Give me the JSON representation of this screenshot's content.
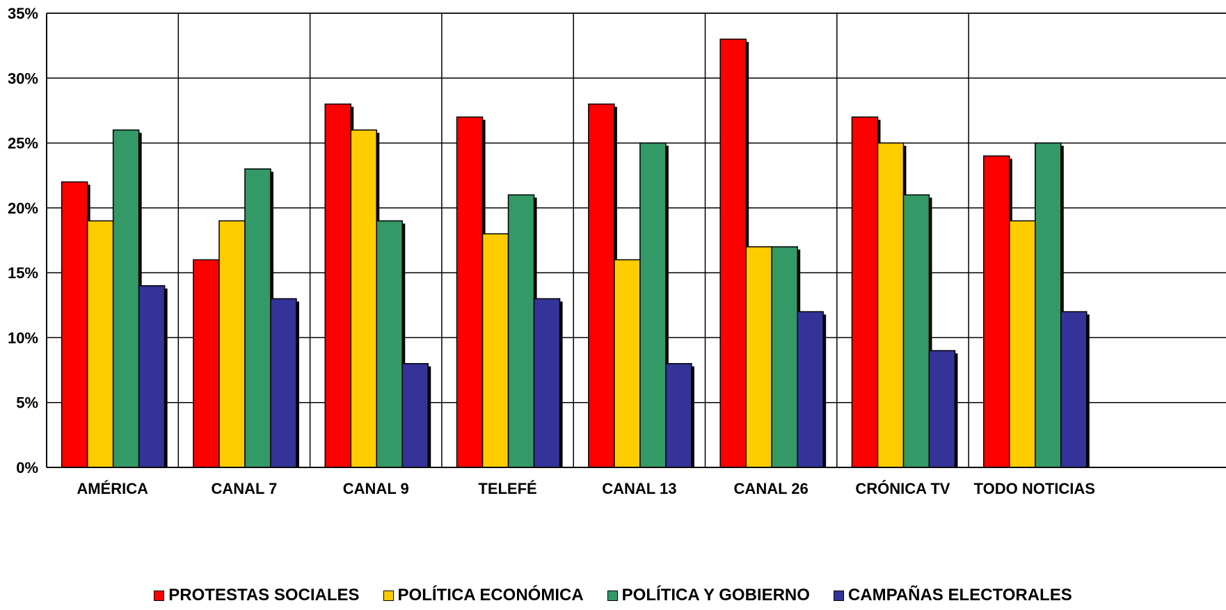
{
  "chart_data": {
    "type": "bar",
    "title": "",
    "xlabel": "",
    "ylabel": "",
    "categories": [
      "AMÉRICA",
      "CANAL 7",
      "CANAL 9",
      "TELEFÉ",
      "CANAL 13",
      "CANAL 26",
      "CRÓNICA TV",
      "TODO NOTICIAS"
    ],
    "series": [
      {
        "name": "PROTESTAS SOCIALES",
        "color": "#ff0000",
        "values": [
          22,
          16,
          28,
          27,
          28,
          33,
          27,
          24
        ]
      },
      {
        "name": "POLÍTICA ECONÓMICA",
        "color": "#ffcc00",
        "values": [
          19,
          19,
          26,
          18,
          16,
          17,
          25,
          19
        ]
      },
      {
        "name": "POLÍTICA Y GOBIERNO",
        "color": "#339966",
        "values": [
          26,
          23,
          19,
          21,
          25,
          17,
          21,
          25
        ]
      },
      {
        "name": "CAMPAÑAS ELECTORALES",
        "color": "#333399",
        "values": [
          14,
          13,
          8,
          13,
          8,
          12,
          9,
          12
        ]
      }
    ],
    "ylim": [
      0,
      35
    ],
    "yticks": [
      0,
      5,
      10,
      15,
      20,
      25,
      30,
      35
    ],
    "ytick_labels": [
      "0%",
      "5%",
      "10%",
      "15%",
      "20%",
      "25%",
      "30%",
      "35%"
    ],
    "grid": true,
    "legend_position": "bottom"
  }
}
